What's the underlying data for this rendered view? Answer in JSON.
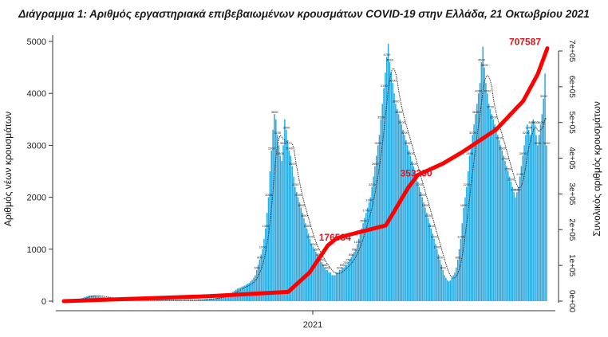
{
  "chart_data": {
    "type": "bar",
    "title": "Διάγραμμα 1: Αριθμός εργαστηριακά επιβεβαιωμένων κρουσμάτων COVID-19 στην Ελλάδα, 21 Οκτωβρίου 2021",
    "ylabel": "Αριθμός νέων κρουσμάτων",
    "y2label": "Συνολικός αριθμός κρουσμάτων",
    "x_tick_label": "2021",
    "ylim": [
      0,
      5000
    ],
    "y_ticks": [
      0,
      1000,
      2000,
      3000,
      4000,
      5000
    ],
    "y2lim": [
      0,
      700000
    ],
    "y2_ticks": [
      "0e+00",
      "1e+05",
      "2e+05",
      "3e+05",
      "4e+05",
      "5e+05",
      "6e+05",
      "7e+05"
    ],
    "grid": false,
    "colors": {
      "bars": "#29abe2",
      "cumulative": "#ff0000",
      "average": "#333333",
      "callout": "#e0141c"
    },
    "series": [
      {
        "type": "bar",
        "axis": "left",
        "values": [
          2,
          3,
          4,
          5,
          8,
          10,
          15,
          20,
          25,
          30,
          40,
          50,
          60,
          70,
          80,
          90,
          100,
          110,
          110,
          110,
          110,
          100,
          100,
          95,
          90,
          85,
          80,
          75,
          70,
          70,
          65,
          60,
          55,
          50,
          50,
          45,
          45,
          40,
          40,
          40,
          35,
          35,
          30,
          30,
          30,
          25,
          25,
          25,
          25,
          25,
          25,
          25,
          25,
          25,
          25,
          25,
          25,
          25,
          20,
          20,
          20,
          20,
          20,
          20,
          20,
          20,
          20,
          20,
          20,
          20,
          20,
          20,
          20,
          20,
          20,
          20,
          20,
          20,
          20,
          20,
          20,
          20,
          20,
          20,
          20,
          20,
          20,
          20,
          20,
          20,
          20,
          30,
          30,
          30,
          30,
          40,
          40,
          40,
          40,
          50,
          50,
          50,
          60,
          60,
          70,
          70,
          80,
          90,
          100,
          110,
          120,
          130,
          150,
          160,
          180,
          200,
          220,
          240,
          250,
          260,
          280,
          290,
          300,
          320,
          340,
          350,
          380,
          410,
          450,
          500,
          600,
          700,
          800,
          900,
          1000,
          1200,
          1400,
          1700,
          2000,
          2500,
          2900,
          3300,
          3600,
          3500,
          3200,
          3000,
          2800,
          2700,
          3000,
          3500,
          3300,
          3100,
          2900,
          2800,
          2600,
          2400,
          2200,
          2100,
          2000,
          1900,
          1800,
          1700,
          1600,
          1500,
          1400,
          1300,
          1200,
          1100,
          1050,
          1000,
          950,
          900,
          850,
          800,
          750,
          700,
          650,
          600,
          600,
          550,
          550,
          500,
          500,
          500,
          550,
          550,
          600,
          600,
          650,
          650,
          700,
          700,
          750,
          800,
          850,
          900,
          950,
          1000,
          1100,
          1200,
          1300,
          1400,
          1500,
          1600,
          1700,
          1800,
          1900,
          2000,
          2200,
          2400,
          2600,
          2800,
          3000,
          3200,
          3500,
          3800,
          4100,
          4400,
          4700,
          4956,
          4600,
          4400,
          4200,
          4000,
          3800,
          3700,
          3600,
          3500,
          3400,
          3300,
          3200,
          3100,
          3000,
          2900,
          2800,
          2700,
          2600,
          2500,
          2400,
          2300,
          2200,
          2100,
          2000,
          1900,
          1800,
          1700,
          1600,
          1500,
          1400,
          1300,
          1200,
          1100,
          1000,
          900,
          800,
          700,
          600,
          500,
          450,
          400,
          380,
          400,
          450,
          500,
          550,
          650,
          800,
          1000,
          1200,
          1500,
          1800,
          2000,
          2200,
          2500,
          2800,
          3000,
          3200,
          3400,
          3600,
          3800,
          4000,
          4200,
          4600,
          4900,
          4500,
          4200,
          4000,
          3800,
          3700,
          3600,
          3500,
          3400,
          3300,
          3200,
          3100,
          3000,
          2900,
          2800,
          2700,
          2600,
          2500,
          2400,
          2300,
          2200,
          2100,
          2000,
          2100,
          2200,
          2400,
          2600,
          2800,
          3000,
          3200,
          3400,
          3300,
          3200,
          3400,
          3500,
          3400,
          3200,
          3000,
          3200,
          3400,
          3600,
          3900,
          4382,
          3000
        ]
      },
      {
        "type": "line",
        "axis": "right",
        "name": "cumulative",
        "points": [
          [
            0,
            0
          ],
          [
            150,
            14000
          ],
          [
            232,
            26000
          ],
          [
            254,
            80000
          ],
          [
            273,
            156000
          ],
          [
            282,
            176000
          ],
          [
            294,
            185000
          ],
          [
            333,
            212000
          ],
          [
            356,
            317000
          ],
          [
            366,
            353000
          ],
          [
            392,
            385000
          ],
          [
            412,
            417000
          ],
          [
            447,
            480000
          ],
          [
            475,
            560000
          ],
          [
            490,
            635000
          ],
          [
            500,
            707587
          ]
        ]
      }
    ],
    "annotations": [
      "176534",
      "353390",
      "707587"
    ]
  }
}
